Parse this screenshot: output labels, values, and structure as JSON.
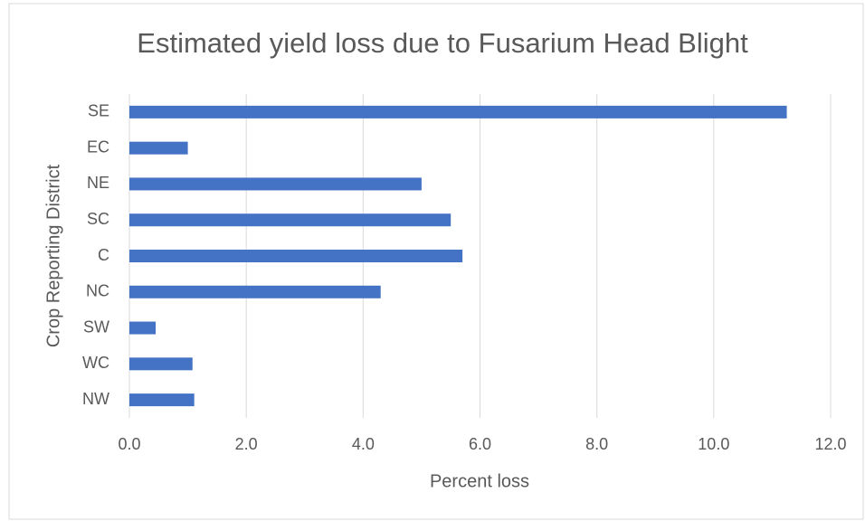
{
  "chart_data": {
    "type": "hbar",
    "title": "Estimated yield loss due to Fusarium Head Blight",
    "xlabel": "Percent loss",
    "ylabel": "Crop Reporting District",
    "categories": [
      "SE",
      "EC",
      "NE",
      "SC",
      "C",
      "NC",
      "SW",
      "WC",
      "NW"
    ],
    "values": [
      11.25,
      1.0,
      5.0,
      5.5,
      5.7,
      4.3,
      0.45,
      1.08,
      1.11
    ],
    "color": "#4472c4",
    "xlim": [
      0,
      12
    ],
    "xticks": [
      {
        "value": 0,
        "label": "0.0"
      },
      {
        "value": 2,
        "label": "2.0"
      },
      {
        "value": 4,
        "label": "4.0"
      },
      {
        "value": 6,
        "label": "6.0"
      },
      {
        "value": 8,
        "label": "8.0"
      },
      {
        "value": 10,
        "label": "10.0"
      },
      {
        "value": 12,
        "label": "12.0"
      }
    ],
    "grid": true
  }
}
